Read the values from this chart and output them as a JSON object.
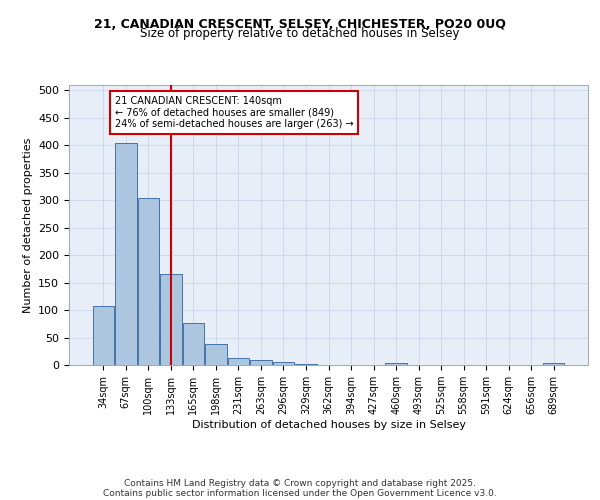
{
  "title1": "21, CANADIAN CRESCENT, SELSEY, CHICHESTER, PO20 0UQ",
  "title2": "Size of property relative to detached houses in Selsey",
  "xlabel": "Distribution of detached houses by size in Selsey",
  "ylabel": "Number of detached properties",
  "categories": [
    "34sqm",
    "67sqm",
    "100sqm",
    "133sqm",
    "165sqm",
    "198sqm",
    "231sqm",
    "263sqm",
    "296sqm",
    "329sqm",
    "362sqm",
    "394sqm",
    "427sqm",
    "460sqm",
    "493sqm",
    "525sqm",
    "558sqm",
    "591sqm",
    "624sqm",
    "656sqm",
    "689sqm"
  ],
  "values": [
    107,
    404,
    304,
    165,
    76,
    38,
    13,
    10,
    5,
    2,
    0,
    0,
    0,
    3,
    0,
    0,
    0,
    0,
    0,
    0,
    3
  ],
  "bar_color": "#adc6e0",
  "bar_edge_color": "#4472a8",
  "grid_color": "#c8d4e8",
  "bg_color": "#e8eef8",
  "vline_color": "#cc0000",
  "vline_x": 3.0,
  "annotation_text": "21 CANADIAN CRESCENT: 140sqm\n← 76% of detached houses are smaller (849)\n24% of semi-detached houses are larger (263) →",
  "annotation_box_color": "#ffffff",
  "annotation_box_edge": "#cc0000",
  "footer1": "Contains HM Land Registry data © Crown copyright and database right 2025.",
  "footer2": "Contains public sector information licensed under the Open Government Licence v3.0.",
  "ylim": [
    0,
    510
  ],
  "yticks": [
    0,
    50,
    100,
    150,
    200,
    250,
    300,
    350,
    400,
    450,
    500
  ]
}
